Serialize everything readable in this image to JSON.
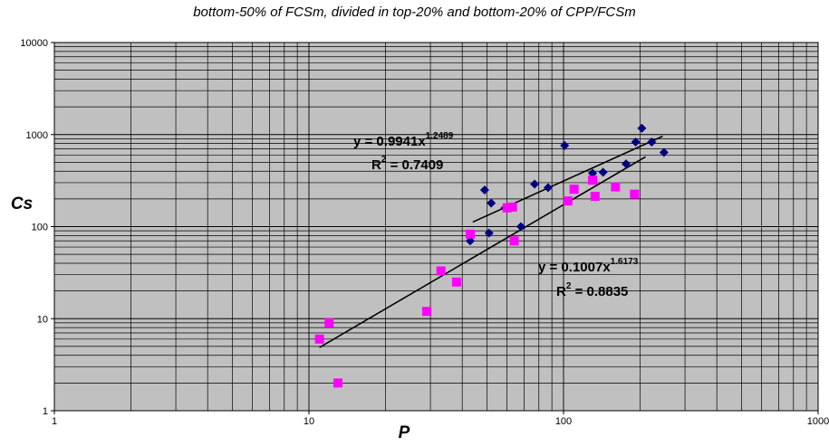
{
  "chart_data": {
    "type": "scatter",
    "title": "bottom-50% of FCSm, divided in top-20% and bottom-20% of CPP/FCSm",
    "xlabel": "P",
    "ylabel": "Cs",
    "xscale": "log",
    "yscale": "log",
    "xlim": [
      1,
      1000
    ],
    "ylim": [
      1,
      10000
    ],
    "x_tick_labels": [
      "1",
      "10",
      "100",
      "1000"
    ],
    "y_tick_labels": [
      "1",
      "10",
      "100",
      "1000",
      "10000"
    ],
    "grid": true,
    "background_color": "#c0c0c0",
    "series": [
      {
        "marker": "diamond",
        "color": "#000080",
        "points": [
          {
            "x": 43,
            "y": 70
          },
          {
            "x": 49,
            "y": 250
          },
          {
            "x": 51,
            "y": 85
          },
          {
            "x": 52,
            "y": 180
          },
          {
            "x": 59,
            "y": 160
          },
          {
            "x": 68,
            "y": 100
          },
          {
            "x": 77,
            "y": 290
          },
          {
            "x": 87,
            "y": 265
          },
          {
            "x": 101,
            "y": 760
          },
          {
            "x": 130,
            "y": 380
          },
          {
            "x": 143,
            "y": 390
          },
          {
            "x": 176,
            "y": 480
          },
          {
            "x": 192,
            "y": 830
          },
          {
            "x": 203,
            "y": 1170
          },
          {
            "x": 222,
            "y": 830
          },
          {
            "x": 248,
            "y": 640
          }
        ],
        "trendline": {
          "type": "power",
          "a": 0.9941,
          "b": 1.2489,
          "x_range": [
            44,
            245
          ],
          "equation": "y = 0.9941x",
          "exponent": "1.2489",
          "r2_prefix": "R",
          "r2_exp": "2",
          "r2_value": " = 0.7409"
        }
      },
      {
        "marker": "square",
        "color": "#ff00ff",
        "points": [
          {
            "x": 11,
            "y": 6
          },
          {
            "x": 12,
            "y": 9
          },
          {
            "x": 13,
            "y": 2
          },
          {
            "x": 29,
            "y": 12
          },
          {
            "x": 33,
            "y": 33
          },
          {
            "x": 38,
            "y": 25
          },
          {
            "x": 43,
            "y": 83
          },
          {
            "x": 60,
            "y": 160
          },
          {
            "x": 63,
            "y": 163
          },
          {
            "x": 64,
            "y": 70
          },
          {
            "x": 104,
            "y": 190
          },
          {
            "x": 110,
            "y": 255
          },
          {
            "x": 130,
            "y": 320
          },
          {
            "x": 133,
            "y": 213
          },
          {
            "x": 160,
            "y": 270
          },
          {
            "x": 190,
            "y": 225
          }
        ],
        "trendline": {
          "type": "power",
          "a": 0.1007,
          "b": 1.6173,
          "x_range": [
            11,
            210
          ],
          "equation": "y = 0.1007x",
          "exponent": "1.6173",
          "r2_prefix": "R",
          "r2_exp": "2",
          "r2_value": " = 0.8835"
        }
      }
    ]
  }
}
